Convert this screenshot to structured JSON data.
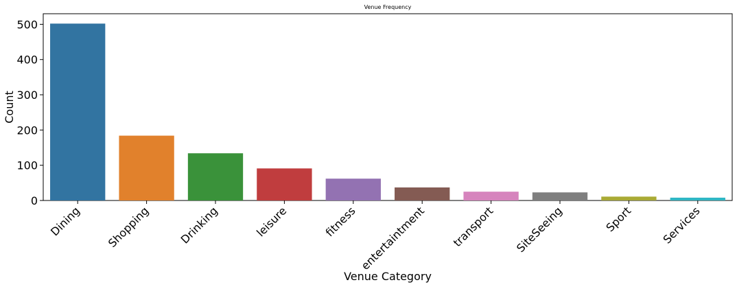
{
  "chart_data": {
    "type": "bar",
    "title": "Venue Frequency",
    "xlabel": "Venue Category",
    "ylabel": "Count",
    "categories": [
      "Dining",
      "Shopping",
      "Drinking",
      "leisure",
      "fitness",
      "entertaintment",
      "transport",
      "SiteSeeing",
      "Sport",
      "Services"
    ],
    "values": [
      502,
      184,
      134,
      91,
      62,
      37,
      25,
      23,
      11,
      8
    ],
    "colors": [
      "#3274a1",
      "#e1812c",
      "#3a923a",
      "#c03d3e",
      "#9372b2",
      "#845b53",
      "#d684bd",
      "#7f7f7f",
      "#a9aa35",
      "#2eb6c4"
    ],
    "ylim": [
      0,
      530
    ],
    "yticks": [
      "0",
      "100",
      "200",
      "300",
      "400",
      "500"
    ],
    "grid": false,
    "legend": "none"
  }
}
